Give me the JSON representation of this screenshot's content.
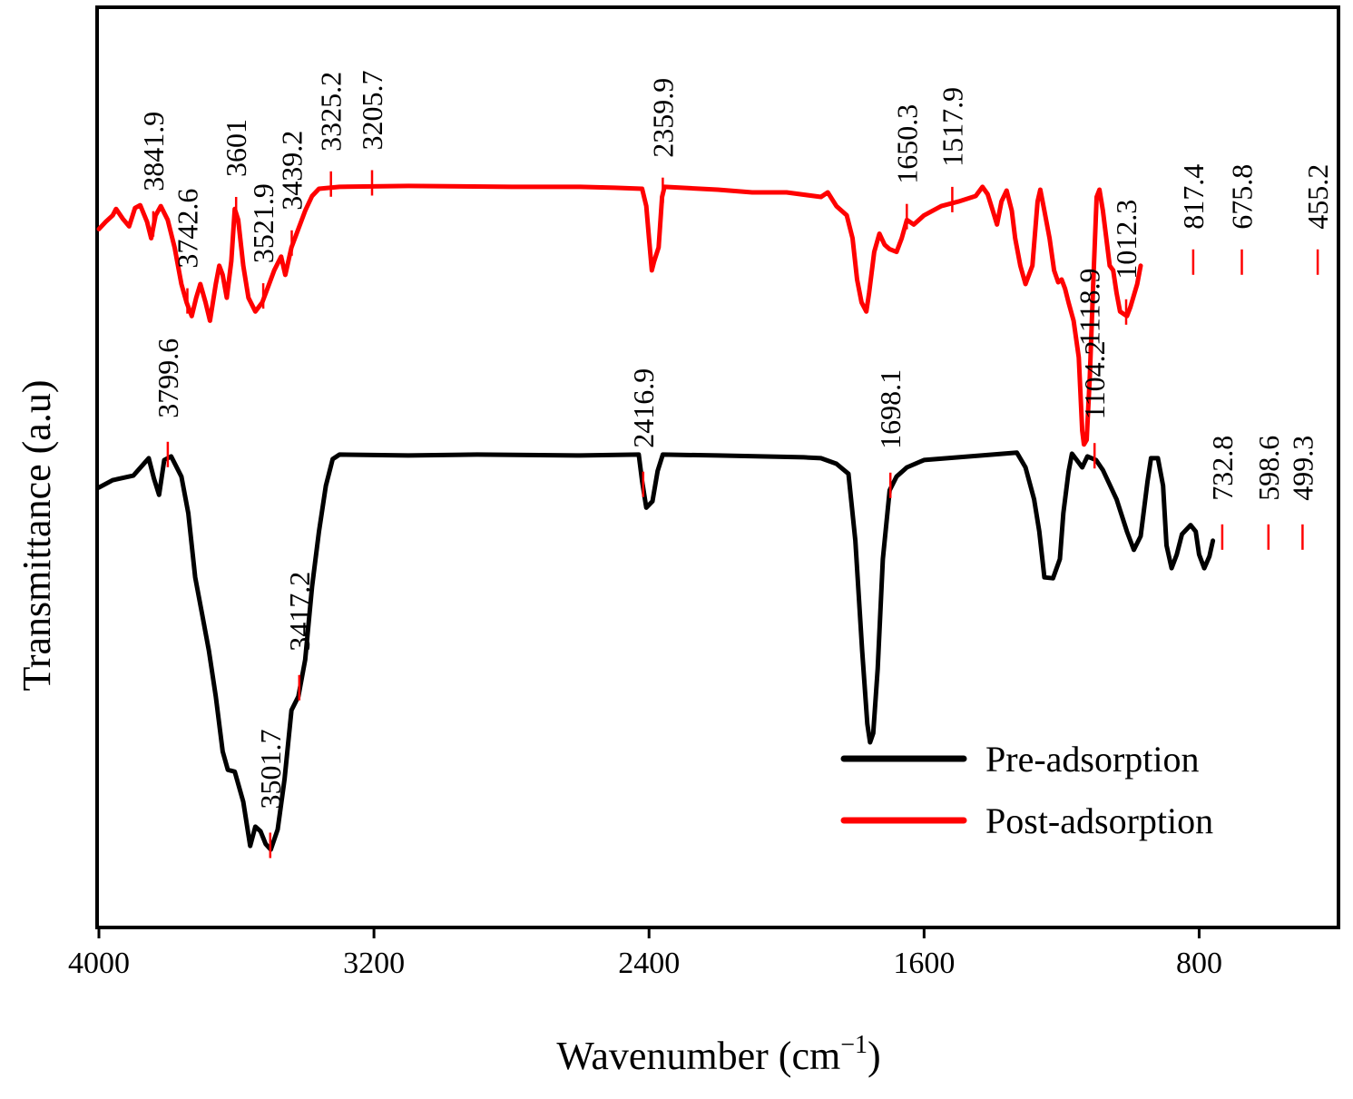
{
  "chart_data": {
    "type": "line",
    "title": "",
    "xlabel": "Wavenumber (cm",
    "xlabel_sup": "−1",
    "xlabel_close": ")",
    "ylabel": "Transmittance (a.u)",
    "xlim": [
      4000,
      400
    ],
    "ylim": [
      0,
      100
    ],
    "x_ticks": [
      {
        "value": 4000,
        "label": "4000"
      },
      {
        "value": 3200,
        "label": "3200"
      },
      {
        "value": 2400,
        "label": "2400"
      },
      {
        "value": 1600,
        "label": "1600"
      },
      {
        "value": 800,
        "label": "800"
      }
    ],
    "grid": false,
    "legend_position": "bottom-right",
    "series": [
      {
        "name": "Pre-adsorption",
        "color": "#000000",
        "points": [
          [
            4000,
            47.8
          ],
          [
            3960,
            48.6
          ],
          [
            3900,
            49.1
          ],
          [
            3855,
            51.0
          ],
          [
            3840,
            48.8
          ],
          [
            3825,
            47.0
          ],
          [
            3810,
            50.8
          ],
          [
            3790,
            51.2
          ],
          [
            3760,
            49.0
          ],
          [
            3740,
            45.0
          ],
          [
            3720,
            38.0
          ],
          [
            3700,
            34.0
          ],
          [
            3680,
            30.0
          ],
          [
            3660,
            25.0
          ],
          [
            3640,
            19.0
          ],
          [
            3625,
            17.0
          ],
          [
            3605,
            16.8
          ],
          [
            3580,
            13.5
          ],
          [
            3560,
            8.7
          ],
          [
            3545,
            10.8
          ],
          [
            3530,
            10.3
          ],
          [
            3515,
            8.9
          ],
          [
            3500,
            8.3
          ],
          [
            3480,
            10.5
          ],
          [
            3460,
            16.0
          ],
          [
            3440,
            23.5
          ],
          [
            3420,
            25.0
          ],
          [
            3400,
            29.0
          ],
          [
            3380,
            37.0
          ],
          [
            3360,
            43.0
          ],
          [
            3340,
            48.0
          ],
          [
            3320,
            50.9
          ],
          [
            3300,
            51.4
          ],
          [
            3100,
            51.3
          ],
          [
            2900,
            51.4
          ],
          [
            2600,
            51.3
          ],
          [
            2430,
            51.4
          ],
          [
            2420,
            48.5
          ],
          [
            2408,
            45.6
          ],
          [
            2390,
            46.3
          ],
          [
            2375,
            49.6
          ],
          [
            2360,
            51.4
          ],
          [
            2200,
            51.3
          ],
          [
            1950,
            51.1
          ],
          [
            1900,
            51.0
          ],
          [
            1855,
            50.4
          ],
          [
            1820,
            49.3
          ],
          [
            1800,
            42.0
          ],
          [
            1780,
            30.0
          ],
          [
            1765,
            22.0
          ],
          [
            1757,
            20.0
          ],
          [
            1748,
            21.0
          ],
          [
            1735,
            28.0
          ],
          [
            1720,
            40.0
          ],
          [
            1700,
            47.5
          ],
          [
            1680,
            49.0
          ],
          [
            1650,
            50.0
          ],
          [
            1600,
            50.8
          ],
          [
            1500,
            51.1
          ],
          [
            1400,
            51.4
          ],
          [
            1330,
            51.6
          ],
          [
            1305,
            50.0
          ],
          [
            1280,
            46.5
          ],
          [
            1265,
            43.0
          ],
          [
            1250,
            38.0
          ],
          [
            1225,
            37.9
          ],
          [
            1205,
            40.0
          ],
          [
            1195,
            45.0
          ],
          [
            1180,
            49.5
          ],
          [
            1170,
            51.5
          ],
          [
            1150,
            50.5
          ],
          [
            1140,
            50.0
          ],
          [
            1125,
            51.2
          ],
          [
            1100,
            50.8
          ],
          [
            1080,
            49.7
          ],
          [
            1040,
            46.5
          ],
          [
            1010,
            43.0
          ],
          [
            990,
            41.0
          ],
          [
            970,
            42.5
          ],
          [
            950,
            48.5
          ],
          [
            940,
            51.0
          ],
          [
            920,
            51.0
          ],
          [
            905,
            48.0
          ],
          [
            895,
            41.5
          ],
          [
            880,
            39.0
          ],
          [
            865,
            40.5
          ],
          [
            850,
            42.7
          ],
          [
            825,
            43.7
          ],
          [
            810,
            43.0
          ],
          [
            800,
            40.5
          ],
          [
            785,
            39.0
          ],
          [
            770,
            40.3
          ],
          [
            760,
            42.0
          ]
        ]
      },
      {
        "name": "Post-adsorption",
        "color": "#ff0000",
        "points": [
          [
            4000,
            76.0
          ],
          [
            3980,
            76.8
          ],
          [
            3960,
            77.5
          ],
          [
            3950,
            78.2
          ],
          [
            3930,
            77.1
          ],
          [
            3912,
            76.3
          ],
          [
            3895,
            78.3
          ],
          [
            3880,
            78.6
          ],
          [
            3860,
            76.8
          ],
          [
            3848,
            75.0
          ],
          [
            3835,
            77.5
          ],
          [
            3820,
            78.5
          ],
          [
            3800,
            77.0
          ],
          [
            3780,
            74.0
          ],
          [
            3760,
            70.0
          ],
          [
            3745,
            68.0
          ],
          [
            3730,
            66.5
          ],
          [
            3717,
            68.5
          ],
          [
            3705,
            70.0
          ],
          [
            3690,
            68.0
          ],
          [
            3677,
            66.0
          ],
          [
            3660,
            70.0
          ],
          [
            3650,
            72.0
          ],
          [
            3640,
            71.0
          ],
          [
            3628,
            68.5
          ],
          [
            3615,
            72.5
          ],
          [
            3605,
            78.2
          ],
          [
            3595,
            77.0
          ],
          [
            3580,
            72.0
          ],
          [
            3565,
            68.5
          ],
          [
            3545,
            67.0
          ],
          [
            3525,
            68.0
          ],
          [
            3505,
            70.0
          ],
          [
            3490,
            71.5
          ],
          [
            3470,
            73.0
          ],
          [
            3458,
            71.0
          ],
          [
            3440,
            74.0
          ],
          [
            3400,
            78.0
          ],
          [
            3380,
            79.6
          ],
          [
            3360,
            80.4
          ],
          [
            3300,
            80.6
          ],
          [
            3100,
            80.7
          ],
          [
            2800,
            80.6
          ],
          [
            2600,
            80.6
          ],
          [
            2500,
            80.5
          ],
          [
            2420,
            80.4
          ],
          [
            2408,
            78.5
          ],
          [
            2400,
            75.0
          ],
          [
            2392,
            71.5
          ],
          [
            2385,
            72.5
          ],
          [
            2372,
            74.0
          ],
          [
            2362,
            79.5
          ],
          [
            2355,
            80.6
          ],
          [
            2200,
            80.3
          ],
          [
            2100,
            80.0
          ],
          [
            2000,
            80.0
          ],
          [
            1900,
            79.5
          ],
          [
            1880,
            80.0
          ],
          [
            1855,
            78.5
          ],
          [
            1825,
            77.5
          ],
          [
            1808,
            75.0
          ],
          [
            1795,
            70.5
          ],
          [
            1782,
            68.0
          ],
          [
            1768,
            67.0
          ],
          [
            1760,
            69.0
          ],
          [
            1745,
            73.5
          ],
          [
            1730,
            75.5
          ],
          [
            1715,
            74.3
          ],
          [
            1700,
            73.8
          ],
          [
            1680,
            73.5
          ],
          [
            1665,
            75.0
          ],
          [
            1650,
            77.0
          ],
          [
            1630,
            76.5
          ],
          [
            1600,
            77.5
          ],
          [
            1550,
            78.5
          ],
          [
            1500,
            79.0
          ],
          [
            1450,
            79.6
          ],
          [
            1430,
            80.6
          ],
          [
            1415,
            79.8
          ],
          [
            1400,
            78.0
          ],
          [
            1388,
            76.5
          ],
          [
            1375,
            79.0
          ],
          [
            1360,
            80.2
          ],
          [
            1345,
            78.0
          ],
          [
            1335,
            75.0
          ],
          [
            1320,
            72.0
          ],
          [
            1305,
            70.0
          ],
          [
            1285,
            72.0
          ],
          [
            1270,
            79.0
          ],
          [
            1262,
            80.3
          ],
          [
            1250,
            78.0
          ],
          [
            1235,
            75.0
          ],
          [
            1222,
            71.5
          ],
          [
            1210,
            70.2
          ],
          [
            1200,
            70.5
          ],
          [
            1190,
            69.5
          ],
          [
            1180,
            68.0
          ],
          [
            1165,
            66.0
          ],
          [
            1150,
            62.0
          ],
          [
            1140,
            54.0
          ],
          [
            1135,
            52.5
          ],
          [
            1127,
            53.0
          ],
          [
            1118,
            60.0
          ],
          [
            1108,
            70.0
          ],
          [
            1098,
            79.5
          ],
          [
            1090,
            80.3
          ],
          [
            1080,
            78.0
          ],
          [
            1060,
            72.0
          ],
          [
            1050,
            71.5
          ],
          [
            1040,
            69.0
          ],
          [
            1030,
            67.0
          ],
          [
            1010,
            66.5
          ],
          [
            1000,
            67.5
          ],
          [
            980,
            70.0
          ],
          [
            970,
            72.0
          ]
        ]
      }
    ],
    "annotations": [
      {
        "series": "Post-adsorption",
        "wavenumber": 3841.9,
        "label": "3841.9"
      },
      {
        "series": "Post-adsorption",
        "wavenumber": 3742.6,
        "label": "3742.6"
      },
      {
        "series": "Post-adsorption",
        "wavenumber": 3601,
        "label": "3601"
      },
      {
        "series": "Post-adsorption",
        "wavenumber": 3521.9,
        "label": "3521.9"
      },
      {
        "series": "Post-adsorption",
        "wavenumber": 3439.2,
        "label": "3439.2"
      },
      {
        "series": "Post-adsorption",
        "wavenumber": 3325.2,
        "label": "3325.2"
      },
      {
        "series": "Post-adsorption",
        "wavenumber": 3205.7,
        "label": "3205.7"
      },
      {
        "series": "Post-adsorption",
        "wavenumber": 2359.9,
        "label": "2359.9"
      },
      {
        "series": "Post-adsorption",
        "wavenumber": 1650.3,
        "label": "1650.3"
      },
      {
        "series": "Post-adsorption",
        "wavenumber": 1517.9,
        "label": "1517.9"
      },
      {
        "series": "Post-adsorption",
        "wavenumber": 1118.9,
        "label": "1118.9"
      },
      {
        "series": "Post-adsorption",
        "wavenumber": 1012.3,
        "label": "1012.3"
      },
      {
        "series": "Post-adsorption",
        "wavenumber": 817.4,
        "label": "817.4"
      },
      {
        "series": "Post-adsorption",
        "wavenumber": 675.8,
        "label": "675.8"
      },
      {
        "series": "Post-adsorption",
        "wavenumber": 455.2,
        "label": "455.2"
      },
      {
        "series": "Pre-adsorption",
        "wavenumber": 3799.6,
        "label": "3799.6"
      },
      {
        "series": "Pre-adsorption",
        "wavenumber": 3501.7,
        "label": "3501.7"
      },
      {
        "series": "Pre-adsorption",
        "wavenumber": 3417.2,
        "label": "3417.2"
      },
      {
        "series": "Pre-adsorption",
        "wavenumber": 2416.9,
        "label": "2416.9"
      },
      {
        "series": "Pre-adsorption",
        "wavenumber": 1698.1,
        "label": "1698.1"
      },
      {
        "series": "Pre-adsorption",
        "wavenumber": 1104.2,
        "label": "1104.2"
      },
      {
        "series": "Pre-adsorption",
        "wavenumber": 732.8,
        "label": "732.8"
      },
      {
        "series": "Pre-adsorption",
        "wavenumber": 598.6,
        "label": "598.6"
      },
      {
        "series": "Pre-adsorption",
        "wavenumber": 499.3,
        "label": "499.3"
      }
    ],
    "legend": [
      {
        "name": "Pre-adsorption",
        "color": "#000000"
      },
      {
        "name": "Post-adsorption",
        "color": "#ff0000"
      }
    ]
  }
}
